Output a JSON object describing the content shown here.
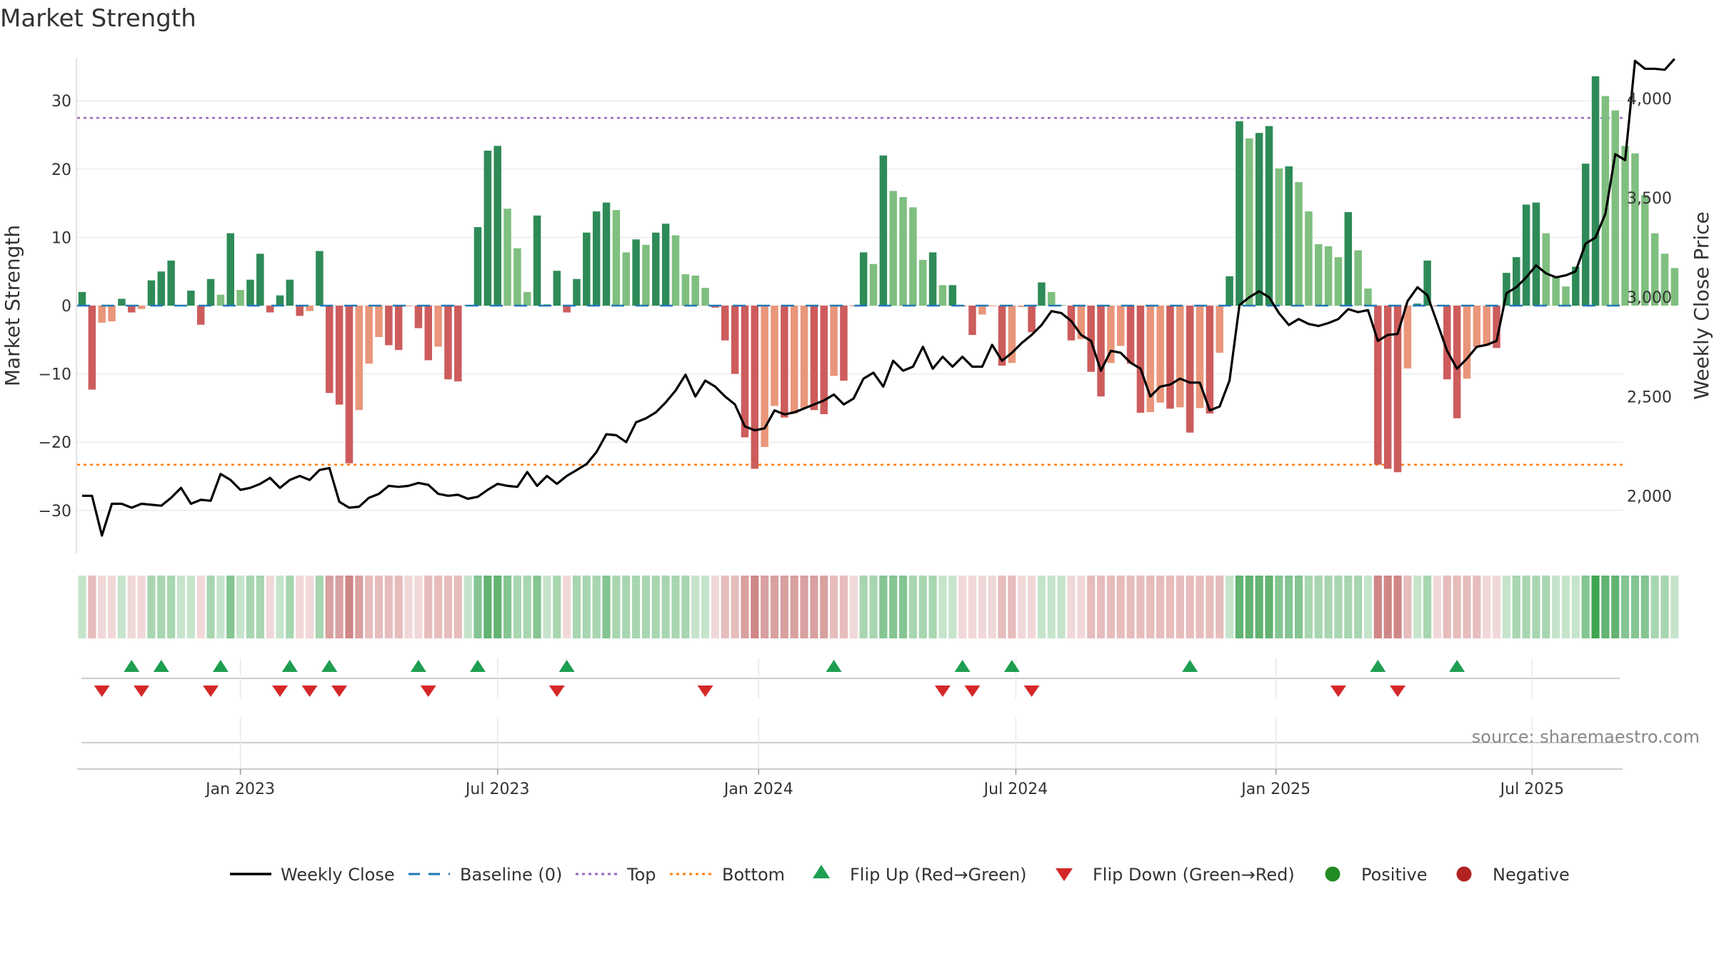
{
  "title": "Market Strength",
  "source": "source: sharemaestro.com",
  "colors": {
    "pos_strong": "#2e8b57",
    "pos_light": "#7fbf7f",
    "neg_strong": "#cd5c5c",
    "neg_light": "#e9967a",
    "close_line": "#000000",
    "baseline": "#1f77b4",
    "top": "#9467bd",
    "bottom": "#ff7f0e",
    "flip_up": "#1e9e50",
    "flip_down": "#d62728",
    "positive": "#228b22",
    "negative": "#b22222"
  },
  "chart_data": {
    "type": "bar",
    "xlabel": "",
    "ylabel": "Market Strength",
    "y2label": "Weekly Close Price",
    "ylim": [
      -36,
      36
    ],
    "y2lim": [
      1710,
      4295
    ],
    "yticks": [
      30,
      20,
      10,
      0,
      -10,
      -20,
      -30
    ],
    "yticklabels": [
      "30",
      "20",
      "10",
      "0",
      "−10",
      "−20",
      "−30"
    ],
    "y2ticks": [
      4000,
      3500,
      3000,
      2500,
      2000
    ],
    "y2ticklabels": [
      "4,000",
      "3,500",
      "3,000",
      "2,500",
      "2,000"
    ],
    "xticks": [
      {
        "label": "Jan 2023",
        "week": 16
      },
      {
        "label": "Jul 2023",
        "week": 42
      },
      {
        "label": "Jan 2024",
        "week": 68.4
      },
      {
        "label": "Jul 2024",
        "week": 94.4
      },
      {
        "label": "Jan 2025",
        "week": 120.7
      },
      {
        "label": "Jul 2025",
        "week": 146.6
      }
    ],
    "top": 27.5,
    "bottom": -23.3,
    "baseline": 0,
    "strength": [
      2,
      -12.3,
      -2.5,
      -2.3,
      1,
      -1,
      -0.5,
      3.7,
      5,
      6.6,
      0.1,
      2.2,
      -2.8,
      3.9,
      1.6,
      10.6,
      2.3,
      3.8,
      7.6,
      -1,
      1.5,
      3.8,
      -1.5,
      -0.8,
      8,
      -12.8,
      -14.5,
      -23.1,
      -15.3,
      -8.5,
      -4.6,
      -5.8,
      -6.5,
      -0.1,
      -3.3,
      -8,
      -6,
      -10.8,
      -11.1,
      0.1,
      11.5,
      22.7,
      23.4,
      14.2,
      8.4,
      2,
      13.2,
      0.2,
      5.1,
      -1,
      3.9,
      10.7,
      13.8,
      15.1,
      14,
      7.8,
      9.7,
      8.9,
      10.7,
      12,
      10.3,
      4.6,
      4.4,
      2.6,
      -0.3,
      -5.1,
      -10,
      -19.3,
      -23.9,
      -20.7,
      -14.7,
      -16.4,
      -15.8,
      -15,
      -15.3,
      -15.9,
      -10.3,
      -11,
      -0.1,
      7.8,
      6.1,
      22,
      16.8,
      15.9,
      14.4,
      6.7,
      7.8,
      3,
      3,
      -0.1,
      -4.3,
      -1.3,
      -0.1,
      -8.8,
      -8.4,
      -0.2,
      -3.9,
      3.4,
      2,
      0.1,
      -5.1,
      -4.9,
      -9.7,
      -13.3,
      -8.4,
      -5.9,
      -8.5,
      -15.7,
      -15.6,
      -14.2,
      -15.1,
      -14.9,
      -18.6,
      -15,
      -15.8,
      -6.9,
      4.3,
      27,
      24.5,
      25.3,
      26.3,
      20.1,
      20.4,
      18.1,
      13.8,
      9,
      8.7,
      7.1,
      13.7,
      8.1,
      2.5,
      -23.3,
      -23.9,
      -24.4,
      -9.2,
      0.3,
      6.6,
      -0.1,
      -10.8,
      -16.5,
      -10.7,
      -6.1,
      -5.9,
      -6.2,
      4.8,
      7.1,
      14.8,
      15.1,
      10.6,
      4.3,
      2.8,
      5.7,
      20.8,
      33.6,
      30.7,
      28.6,
      23.4,
      22.3,
      16.2,
      10.6,
      7.6,
      5.5
    ],
    "weekly_close": [
      2000,
      2000,
      1800,
      1960,
      1960,
      1940,
      1960,
      1955,
      1950,
      1990,
      2040,
      1960,
      1980,
      1975,
      2110,
      2080,
      2030,
      2040,
      2060,
      2090,
      2040,
      2080,
      2100,
      2080,
      2130,
      2140,
      1970,
      1940,
      1945,
      1990,
      2010,
      2050,
      2045,
      2050,
      2065,
      2055,
      2010,
      2000,
      2005,
      1985,
      1995,
      2030,
      2060,
      2050,
      2045,
      2120,
      2050,
      2100,
      2060,
      2100,
      2130,
      2160,
      2220,
      2310,
      2305,
      2270,
      2370,
      2390,
      2420,
      2470,
      2530,
      2610,
      2500,
      2580,
      2550,
      2500,
      2460,
      2350,
      2330,
      2340,
      2430,
      2410,
      2420,
      2440,
      2460,
      2480,
      2510,
      2460,
      2490,
      2590,
      2620,
      2550,
      2680,
      2630,
      2650,
      2750,
      2640,
      2700,
      2650,
      2700,
      2650,
      2650,
      2760,
      2680,
      2720,
      2770,
      2810,
      2860,
      2930,
      2920,
      2880,
      2810,
      2780,
      2630,
      2730,
      2720,
      2670,
      2640,
      2500,
      2550,
      2560,
      2590,
      2570,
      2570,
      2430,
      2450,
      2580,
      2960,
      3000,
      3030,
      3000,
      2920,
      2860,
      2890,
      2865,
      2855,
      2870,
      2890,
      2940,
      2925,
      2935,
      2780,
      2810,
      2815,
      2980,
      3050,
      3010,
      2870,
      2730,
      2640,
      2690,
      2750,
      2760,
      2780,
      3020,
      3050,
      3100,
      3160,
      3120,
      3100,
      3110,
      3130,
      3270,
      3300,
      3420,
      3720,
      3690,
      4190,
      4150,
      4150,
      4145,
      4200
    ],
    "heat_shade": [
      1,
      2,
      1,
      1,
      1,
      1,
      1,
      2,
      2,
      2,
      1,
      1,
      1,
      2,
      1,
      3,
      1,
      2,
      2,
      1,
      1,
      2,
      1,
      1,
      2,
      3,
      3,
      4,
      3,
      2,
      2,
      2,
      2,
      1,
      1,
      2,
      2,
      2,
      2,
      1,
      3,
      4,
      4,
      3,
      2,
      2,
      3,
      1,
      2,
      1,
      2,
      2,
      2,
      3,
      2,
      2,
      2,
      2,
      2,
      2,
      2,
      2,
      1,
      1,
      1,
      2,
      2,
      3,
      4,
      3,
      3,
      3,
      3,
      3,
      3,
      3,
      2,
      2,
      1,
      2,
      2,
      3,
      3,
      3,
      2,
      2,
      2,
      1,
      1,
      1,
      1,
      1,
      1,
      2,
      2,
      1,
      1,
      1,
      1,
      1,
      1,
      1,
      2,
      2,
      2,
      2,
      2,
      2,
      2,
      2,
      2,
      2,
      2,
      2,
      2,
      2,
      1,
      4,
      4,
      4,
      4,
      3,
      3,
      3,
      2,
      2,
      2,
      2,
      2,
      2,
      1,
      4,
      4,
      4,
      2,
      1,
      2,
      1,
      2,
      2,
      2,
      2,
      1,
      1,
      1,
      2,
      2,
      2,
      2,
      1,
      1,
      1,
      3,
      5,
      4,
      4,
      3,
      3,
      3,
      2,
      2,
      1
    ],
    "flip_up": [
      5,
      8,
      14,
      21,
      25,
      34,
      40,
      49,
      76,
      89,
      94,
      112,
      131,
      139
    ],
    "flip_down": [
      2,
      6,
      13,
      20,
      23,
      26,
      35,
      48,
      63,
      87,
      90,
      96,
      127,
      133
    ],
    "legend": [
      {
        "key": "close",
        "label": "Weekly Close"
      },
      {
        "key": "baseline",
        "label": "Baseline (0)"
      },
      {
        "key": "top",
        "label": "Top"
      },
      {
        "key": "bottom",
        "label": "Bottom"
      },
      {
        "key": "flip_up",
        "label": "Flip Up (Red→Green)"
      },
      {
        "key": "flip_down",
        "label": "Flip Down (Green→Red)"
      },
      {
        "key": "positive",
        "label": "Positive"
      },
      {
        "key": "negative",
        "label": "Negative"
      }
    ]
  }
}
